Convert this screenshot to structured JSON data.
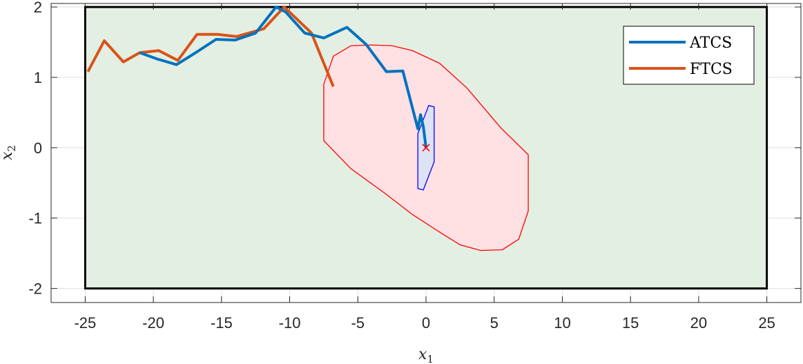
{
  "chart_data": {
    "type": "line",
    "xlabel": "x",
    "xlabel_sub": "1",
    "ylabel": "x",
    "ylabel_sub": "2",
    "xlim": [
      -27.5,
      27.5
    ],
    "ylim": [
      -2.2,
      2.05
    ],
    "xticks": [
      -25,
      -20,
      -15,
      -10,
      -5,
      0,
      5,
      10,
      15,
      20,
      25
    ],
    "xtick_labels": [
      "-25",
      "-20",
      "-15",
      "-10",
      "-5",
      "0",
      "5",
      "10",
      "15",
      "20",
      "25"
    ],
    "yticks": [
      -2,
      -1,
      0,
      1,
      2
    ],
    "ytick_labels": [
      "-2",
      "-1",
      "0",
      "1",
      "2"
    ],
    "grid": true,
    "legend_position": "top-right",
    "regions": [
      {
        "role": "state-constraint-box",
        "fill": "#e3efe2",
        "stroke": "#000000",
        "points": [
          [
            -25,
            -2
          ],
          [
            25,
            -2
          ],
          [
            25,
            2
          ],
          [
            -25,
            2
          ]
        ]
      },
      {
        "role": "outer-set",
        "fill": "#ffe0e3",
        "stroke": "#ff0000",
        "points": [
          [
            -7.5,
            0.9
          ],
          [
            -7.5,
            0.1
          ],
          [
            -5.5,
            -0.3
          ],
          [
            -3,
            -0.65
          ],
          [
            -1,
            -0.95
          ],
          [
            1,
            -1.2
          ],
          [
            2.5,
            -1.38
          ],
          [
            4,
            -1.46
          ],
          [
            5.6,
            -1.45
          ],
          [
            6.8,
            -1.3
          ],
          [
            7.5,
            -0.9
          ],
          [
            7.5,
            -0.1
          ],
          [
            5.5,
            0.28
          ],
          [
            3,
            0.85
          ],
          [
            1,
            1.2
          ],
          [
            -1,
            1.38
          ],
          [
            -2.5,
            1.45
          ],
          [
            -4,
            1.46
          ],
          [
            -5.5,
            1.45
          ],
          [
            -6.8,
            1.3
          ]
        ]
      },
      {
        "role": "inner-set",
        "fill": "#dde3f5",
        "stroke": "#0000ff",
        "points": [
          [
            -0.6,
            0.2
          ],
          [
            0.2,
            0.6
          ],
          [
            0.6,
            0.58
          ],
          [
            0.6,
            -0.2
          ],
          [
            -0.2,
            -0.6
          ],
          [
            -0.6,
            -0.58
          ]
        ]
      }
    ],
    "target_marker": {
      "x": 0,
      "y": 0,
      "color": "#ff0000"
    },
    "series": [
      {
        "name": "ATCS",
        "color": "#0072bd",
        "x": [
          -21,
          -19.7,
          -18.3,
          -16.9,
          -15.4,
          -14,
          -12.5,
          -11,
          -10.3,
          -8.9,
          -7.5,
          -5.8,
          -4.4,
          -2.9,
          -1.7,
          -0.6,
          -0.4,
          -0.2,
          0
        ],
        "y": [
          1.35,
          1.26,
          1.18,
          1.35,
          1.54,
          1.53,
          1.63,
          2.0,
          1.93,
          1.63,
          1.56,
          1.71,
          1.47,
          1.08,
          1.09,
          0.27,
          0.47,
          0.3,
          0
        ]
      },
      {
        "name": "FTCS",
        "color": "#d95319",
        "x": [
          -24.8,
          -23.6,
          -22.2,
          -21,
          -19.6,
          -18.2,
          -16.8,
          -15.3,
          -13.9,
          -11.9,
          -10.4,
          -8.4,
          -6.8
        ],
        "y": [
          1.08,
          1.52,
          1.22,
          1.35,
          1.38,
          1.24,
          1.61,
          1.61,
          1.58,
          1.69,
          2.0,
          1.63,
          0.87
        ]
      }
    ]
  }
}
